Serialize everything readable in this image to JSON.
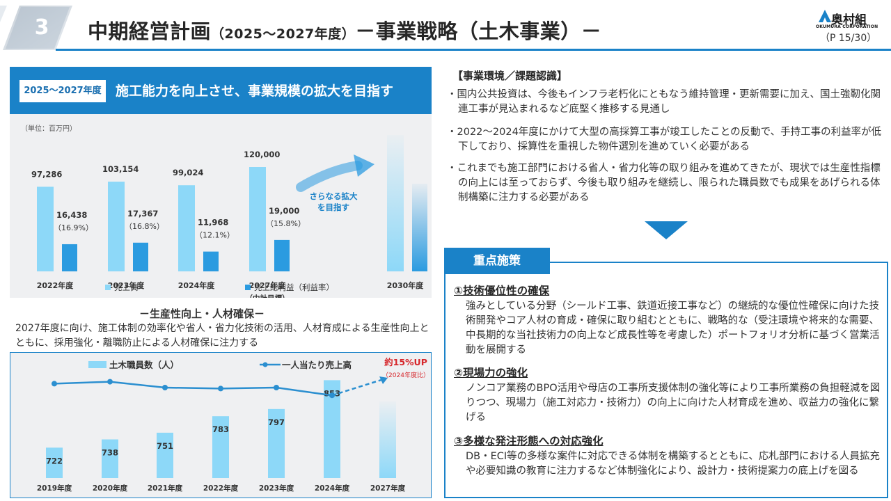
{
  "header": {
    "section_number": "3",
    "title_main": "中期経営計画",
    "title_sub": "（2025～2027年度）",
    "title_rest": "－事業戦略（土木事業）－",
    "page": "（P 15/30）",
    "logo_jp": "奥村組",
    "logo_en": "OKUMURA CORPORATION",
    "accent_color": "#1a82c8"
  },
  "panel": {
    "period": "2025～2027年度",
    "headline": "施工能力を向上させ、事業規模の拡大を目指す",
    "unit": "（単位：百万円）",
    "arrow_text": [
      "さらなる拡大",
      "を目指す"
    ]
  },
  "chart_data": [
    {
      "type": "bar",
      "categories": [
        "2022年度",
        "2023年度",
        "2024年度",
        "2027年度",
        "2030年度"
      ],
      "category_notes": [
        "",
        "",
        "",
        "（中計目標）",
        ""
      ],
      "series": [
        {
          "name": "売上高",
          "values": [
            97286,
            103154,
            99024,
            120000,
            null
          ],
          "labels": [
            "97,286",
            "103,154",
            "99,024",
            "120,000",
            ""
          ],
          "color": "#8dd8f8"
        },
        {
          "name": "売上総利益（利益率）",
          "values": [
            16438,
            17367,
            11968,
            19000,
            null
          ],
          "labels": [
            "16,438",
            "17,367",
            "11,968",
            "19,000",
            ""
          ],
          "rate_labels": [
            "（16.9%）",
            "（16.8%）",
            "（12.1%）",
            "（15.8%）",
            ""
          ],
          "color": "#2b9be0"
        }
      ],
      "legend_position": "bottom"
    },
    {
      "type": "bar",
      "categories": [
        "2019年度",
        "2020年度",
        "2021年度",
        "2022年度",
        "2023年度",
        "2024年度",
        "2027年度"
      ],
      "series": [
        {
          "name": "土木職員数（人）",
          "values": [
            722,
            738,
            751,
            783,
            797,
            853,
            null
          ],
          "labels": [
            "722",
            "738",
            "751",
            "783",
            "797",
            "853",
            ""
          ],
          "color": "#8dd8f8"
        },
        {
          "name": "一人当たり売上高",
          "type": "line",
          "values": [
            0.54,
            0.56,
            0.5,
            0.49,
            0.5,
            0.42,
            0.6
          ],
          "color": "#2b8fd0"
        }
      ],
      "annotation": "約15%UP",
      "annotation_sub": "（2024年度比）",
      "annotation_color": "#d6262b",
      "legend_position": "top"
    }
  ],
  "productivity": {
    "title": "－生産性向上・人材確保－",
    "desc": "2027年度に向け、施工体制の効率化や省人・省力化技術の活用、人材育成による生産性向上とともに、採用強化・離職防止による人材確保に注力する"
  },
  "environment": {
    "title": "【事業環境／課題認識】",
    "items": [
      "・国内公共投資は、今後もインフラ老朽化にともなう維持管理・更新需要に加え、国土強靭化関連工事が見込まれるなど底堅く推移する見通し",
      "・2022～2024年度にかけて大型の高採算工事が竣工したことの反動で、手持工事の利益率が低下しており、採算性を重視した物件選別を進めていく必要がある",
      "・これまでも施工部門における省人・省力化等の取り組みを進めてきたが、現状では生産性指標の向上には至っておらず、今後も取り組みを継続し、限られた職員数でも成果をあげられる体制構築に注力する必要がある"
    ]
  },
  "key_measures": {
    "tab": "重点施策",
    "items": [
      {
        "heading": "①技術優位性の確保",
        "text": "強みとしている分野（シールド工事、鉄道近接工事など）の継続的な優位性確保に向けた技術開発やコア人材の育成・確保に取り組むとともに、戦略的な（受注環境や将来的な需要、中長期的な当社技術力の向上など成長性等を考慮した）ポートフォリオ分析に基づく営業活動を展開する"
      },
      {
        "heading": "②現場力の強化",
        "text": "ノンコア業務のBPO活用や母店の工事所支援体制の強化等により工事所業務の負担軽減を図りつつ、現場力（施工対応力・技術力）の向上に向けた人材育成を進め、収益力の強化に繋げる"
      },
      {
        "heading": "③多様な発注形態への対応強化",
        "text": "DB・ECI等の多様な案件に対応できる体制を構築するとともに、応札部門における人員拡充や必要知識の教育に注力するなど体制強化により、設計力・技術提案力の底上げを図る"
      }
    ]
  }
}
